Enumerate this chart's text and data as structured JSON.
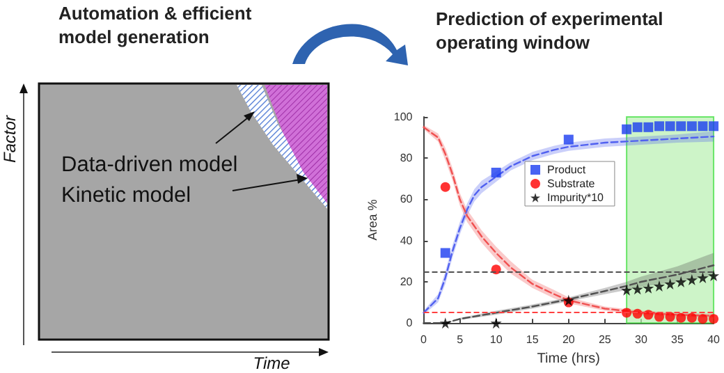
{
  "chart_data": [
    {
      "type": "other",
      "title": "Automation & efficient model generation",
      "xlabel": "Time",
      "ylabel": "Factor",
      "annotations": [
        "Data-driven model",
        "Kinetic model"
      ]
    },
    {
      "type": "scatter",
      "title": "Prediction of experimental operating window",
      "xlabel": "Time (hrs)",
      "ylabel": "Area %",
      "xlim": [
        0,
        40
      ],
      "xticks": [
        0,
        5,
        10,
        15,
        20,
        25,
        30,
        35,
        40
      ],
      "ylim": [
        0,
        100
      ],
      "yticks": [
        0,
        20,
        40,
        60,
        80,
        100
      ],
      "grid": false,
      "legend": "top",
      "series": [
        {
          "name": "Product",
          "type": "scatter",
          "marker": "square",
          "color": "#1a3cf0",
          "x": [
            3,
            10,
            20,
            28,
            29.5,
            31,
            32.5,
            34,
            35.5,
            37,
            38.5,
            40
          ],
          "values": [
            34,
            73,
            89,
            94,
            95,
            95,
            95.5,
            95.5,
            95.5,
            95.5,
            95.5,
            95.5
          ]
        },
        {
          "name": "Substrate",
          "type": "scatter",
          "marker": "circle",
          "color": "#ff0000",
          "x": [
            3,
            10,
            20,
            28,
            29.5,
            31,
            32.5,
            34,
            35.5,
            37,
            38.5,
            40
          ],
          "values": [
            66,
            26,
            10,
            5,
            4.5,
            4,
            3,
            3,
            2.5,
            2.5,
            2,
            2
          ]
        },
        {
          "name": "Impurity*10",
          "type": "scatter",
          "marker": "star",
          "color": "#000000",
          "x": [
            3,
            10,
            20,
            28,
            29.5,
            31,
            32.5,
            34,
            35.5,
            37,
            38.5,
            40
          ],
          "values": [
            0,
            0,
            11,
            16,
            16.5,
            17,
            18,
            19,
            20,
            21,
            22,
            23
          ]
        },
        {
          "type": "line",
          "marker": "none",
          "line_style": "dashed",
          "color": "#5060f0",
          "x": [
            0,
            2,
            3,
            4,
            5,
            6,
            7,
            8,
            10,
            12,
            15,
            18,
            20,
            25,
            30,
            35,
            40
          ],
          "values": [
            5,
            12,
            22,
            35,
            46,
            55,
            62,
            66,
            71,
            76,
            81,
            84,
            85.5,
            87.5,
            88.5,
            89.5,
            90.5
          ],
          "lower": [
            4,
            10,
            19,
            32,
            43,
            52,
            59,
            63,
            68.5,
            74,
            79,
            82,
            83.5,
            85.5,
            86.5,
            87.5,
            88
          ],
          "upper": [
            6,
            14,
            25,
            38,
            49,
            58,
            65,
            69,
            73.5,
            78,
            83,
            86,
            87.5,
            89.5,
            90.5,
            91.5,
            93
          ]
        },
        {
          "type": "line",
          "marker": "none",
          "line_style": "dashed",
          "color": "#f05050",
          "x": [
            0,
            2,
            3,
            4,
            5,
            6,
            8,
            10,
            12,
            15,
            18,
            20,
            25,
            30,
            35,
            40
          ],
          "values": [
            95,
            90,
            82,
            72,
            60,
            52,
            42,
            34,
            27,
            19,
            14,
            11,
            7,
            5,
            4,
            3.5
          ],
          "lower": [
            94,
            88,
            79,
            69,
            57,
            49,
            39,
            31,
            24,
            17,
            12,
            9.5,
            6,
            4,
            3,
            2.5
          ],
          "upper": [
            96,
            92,
            85,
            75,
            63,
            55,
            45,
            37,
            30,
            21,
            16,
            12.5,
            8,
            6,
            5,
            4.5
          ]
        },
        {
          "type": "line",
          "marker": "none",
          "line_style": "dashed",
          "color": "#505050",
          "x": [
            0,
            3,
            5,
            10,
            15,
            20,
            25,
            28,
            30,
            35,
            40
          ],
          "values": [
            0,
            0,
            2,
            5,
            8,
            11.5,
            15.5,
            18,
            20,
            23.5,
            28
          ],
          "lower": [
            0,
            0,
            1.5,
            4,
            7,
            10.5,
            14,
            16,
            17.5,
            20,
            23
          ],
          "upper": [
            0,
            0,
            2.5,
            6,
            9,
            12.5,
            17,
            20,
            22.5,
            27.5,
            34
          ]
        }
      ],
      "ref_lines": [
        {
          "axis": "y",
          "value": 25,
          "color": "#505050",
          "line_style": "dashed"
        },
        {
          "axis": "y",
          "value": 5,
          "color": "#ff4040",
          "line_style": "dashed"
        }
      ],
      "bands": [
        {
          "axis": "x",
          "from": 28,
          "to": 40,
          "color": "#b8f0b0"
        }
      ]
    }
  ]
}
